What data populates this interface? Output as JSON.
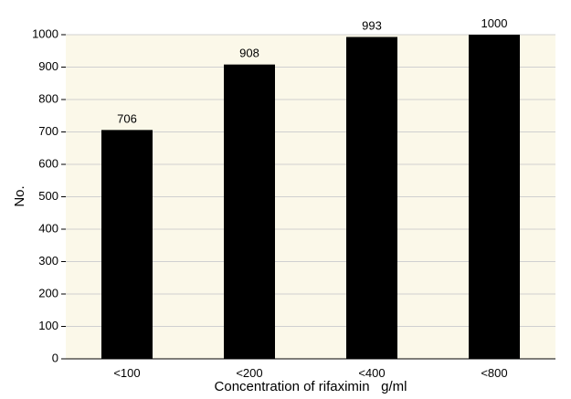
{
  "chart_data": {
    "type": "bar",
    "categories": [
      "<100",
      "<200",
      "<400",
      "<800"
    ],
    "values": [
      706,
      908,
      993,
      1000
    ],
    "data_labels": [
      "706",
      "908",
      "993",
      "1000"
    ],
    "xlabel": "Concentration of rifaximin   g/ml",
    "ylabel": "No.",
    "ylim": [
      0,
      1000
    ],
    "yticks": [
      0,
      100,
      200,
      300,
      400,
      500,
      600,
      700,
      800,
      900,
      1000
    ],
    "grid": true,
    "legend": "none",
    "colors": {
      "bar": "#000000",
      "plot_background": "#fbf8e9",
      "grid": "#d0d0d0",
      "axis": "#000000"
    }
  }
}
